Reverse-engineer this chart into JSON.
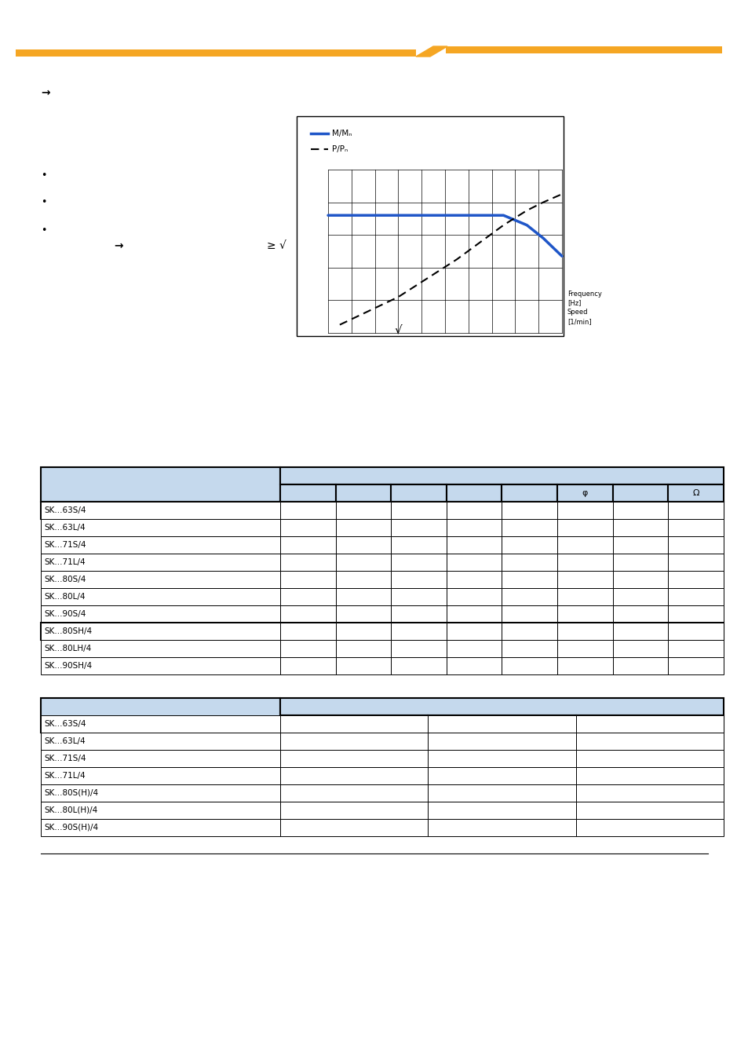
{
  "orange_bar_color": "#F5A623",
  "header_bg": "#C5D9ED",
  "table1_rows": [
    "SK...63S/4",
    "SK...63L/4",
    "SK...71S/4",
    "SK...71L/4",
    "SK...80S/4",
    "SK...80L/4",
    "SK...90S/4"
  ],
  "table1_subheader": [
    "SK...80SH/4",
    "SK...80LH/4",
    "SK...90SH/4"
  ],
  "table2_rows": [
    "SK...63S/4",
    "SK...63L/4",
    "SK...71S/4",
    "SK...71L/4",
    "SK...80S(H)/4",
    "SK...80L(H)/4",
    "SK...90S(H)/4"
  ],
  "table1_ncols": 9,
  "table2_ncols": 4,
  "arrow_symbol": "→",
  "geq_sqrt": "≥ √",
  "sqrt_symbol": "√",
  "bullet": "•",
  "freq_label": "Frequency\n[Hz]\nSpeed\n[1/min]",
  "legend_solid": "M/Mₙ",
  "legend_dashed": "P/Pₙ",
  "blue_line_color": "#1F56C8",
  "dashed_line_color": "#000000",
  "page_bg": "#ffffff"
}
